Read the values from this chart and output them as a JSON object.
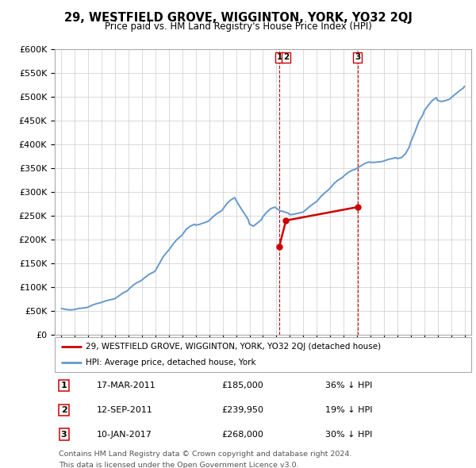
{
  "title": "29, WESTFIELD GROVE, WIGGINTON, YORK, YO32 2QJ",
  "subtitle": "Price paid vs. HM Land Registry's House Price Index (HPI)",
  "legend_line1": "29, WESTFIELD GROVE, WIGGINTON, YORK, YO32 2QJ (detached house)",
  "legend_line2": "HPI: Average price, detached house, York",
  "footer1": "Contains HM Land Registry data © Crown copyright and database right 2024.",
  "footer2": "This data is licensed under the Open Government Licence v3.0.",
  "transactions": [
    {
      "num": 1,
      "date": "17-MAR-2011",
      "price": 185000,
      "pct": "36%",
      "dir": "↓",
      "x": 2011.21
    },
    {
      "num": 2,
      "date": "12-SEP-2011",
      "price": 239950,
      "pct": "19%",
      "dir": "↓",
      "x": 2011.71
    },
    {
      "num": 3,
      "date": "10-JAN-2017",
      "price": 268000,
      "pct": "30%",
      "dir": "↓",
      "x": 2017.03
    }
  ],
  "vline_groups": [
    2011.21,
    2017.03
  ],
  "hpi_color": "#6699cc",
  "sold_color": "#cc0000",
  "vline_color": "#cc0000",
  "grid_color": "#cccccc",
  "ylim": [
    0,
    600000
  ],
  "xlim_start": 1994.5,
  "xlim_end": 2025.5,
  "ytick_values": [
    0,
    50000,
    100000,
    150000,
    200000,
    250000,
    300000,
    350000,
    400000,
    450000,
    500000,
    550000,
    600000
  ],
  "ytick_labels": [
    "£0",
    "£50K",
    "£100K",
    "£150K",
    "£200K",
    "£250K",
    "£300K",
    "£350K",
    "£400K",
    "£450K",
    "£500K",
    "£550K",
    "£600K"
  ],
  "xtick_values": [
    1995,
    1996,
    1997,
    1998,
    1999,
    2000,
    2001,
    2002,
    2003,
    2004,
    2005,
    2006,
    2007,
    2008,
    2009,
    2010,
    2011,
    2012,
    2013,
    2014,
    2015,
    2016,
    2017,
    2018,
    2019,
    2020,
    2021,
    2022,
    2023,
    2024,
    2025
  ],
  "hpi_data": [
    [
      1995.0,
      55000
    ],
    [
      1995.3,
      53000
    ],
    [
      1995.6,
      52000
    ],
    [
      1995.9,
      52500
    ],
    [
      1996.0,
      53000
    ],
    [
      1996.3,
      55000
    ],
    [
      1996.6,
      56000
    ],
    [
      1996.9,
      57000
    ],
    [
      1997.0,
      58000
    ],
    [
      1997.3,
      62000
    ],
    [
      1997.6,
      65000
    ],
    [
      1997.9,
      67000
    ],
    [
      1998.0,
      68000
    ],
    [
      1998.3,
      71000
    ],
    [
      1998.6,
      73000
    ],
    [
      1998.9,
      75000
    ],
    [
      1999.0,
      76000
    ],
    [
      1999.3,
      82000
    ],
    [
      1999.6,
      88000
    ],
    [
      1999.9,
      92000
    ],
    [
      2000.0,
      95000
    ],
    [
      2000.3,
      103000
    ],
    [
      2000.6,
      109000
    ],
    [
      2000.9,
      113000
    ],
    [
      2001.0,
      115000
    ],
    [
      2001.3,
      122000
    ],
    [
      2001.6,
      128000
    ],
    [
      2001.9,
      132000
    ],
    [
      2002.0,
      135000
    ],
    [
      2002.3,
      150000
    ],
    [
      2002.6,
      165000
    ],
    [
      2002.9,
      175000
    ],
    [
      2003.0,
      178000
    ],
    [
      2003.3,
      190000
    ],
    [
      2003.6,
      200000
    ],
    [
      2003.9,
      207000
    ],
    [
      2004.0,
      210000
    ],
    [
      2004.3,
      222000
    ],
    [
      2004.6,
      228000
    ],
    [
      2004.9,
      232000
    ],
    [
      2005.0,
      230000
    ],
    [
      2005.3,
      232000
    ],
    [
      2005.6,
      235000
    ],
    [
      2005.9,
      238000
    ],
    [
      2006.0,
      240000
    ],
    [
      2006.3,
      248000
    ],
    [
      2006.6,
      255000
    ],
    [
      2006.9,
      260000
    ],
    [
      2007.0,
      263000
    ],
    [
      2007.3,
      275000
    ],
    [
      2007.6,
      283000
    ],
    [
      2007.9,
      288000
    ],
    [
      2008.0,
      282000
    ],
    [
      2008.3,
      268000
    ],
    [
      2008.6,
      255000
    ],
    [
      2008.9,
      242000
    ],
    [
      2009.0,
      232000
    ],
    [
      2009.3,
      228000
    ],
    [
      2009.6,
      235000
    ],
    [
      2009.9,
      242000
    ],
    [
      2010.0,
      248000
    ],
    [
      2010.3,
      258000
    ],
    [
      2010.6,
      265000
    ],
    [
      2010.9,
      268000
    ],
    [
      2011.0,
      265000
    ],
    [
      2011.3,
      260000
    ],
    [
      2011.6,
      258000
    ],
    [
      2011.9,
      255000
    ],
    [
      2012.0,
      252000
    ],
    [
      2012.3,
      253000
    ],
    [
      2012.6,
      255000
    ],
    [
      2012.9,
      257000
    ],
    [
      2013.0,
      258000
    ],
    [
      2013.3,
      265000
    ],
    [
      2013.6,
      272000
    ],
    [
      2013.9,
      278000
    ],
    [
      2014.0,
      280000
    ],
    [
      2014.3,
      290000
    ],
    [
      2014.6,
      298000
    ],
    [
      2014.9,
      305000
    ],
    [
      2015.0,
      308000
    ],
    [
      2015.3,
      318000
    ],
    [
      2015.6,
      325000
    ],
    [
      2015.9,
      330000
    ],
    [
      2016.0,
      333000
    ],
    [
      2016.3,
      340000
    ],
    [
      2016.6,
      345000
    ],
    [
      2016.9,
      348000
    ],
    [
      2017.0,
      350000
    ],
    [
      2017.3,
      355000
    ],
    [
      2017.6,
      360000
    ],
    [
      2017.9,
      363000
    ],
    [
      2018.0,
      362000
    ],
    [
      2018.3,
      362000
    ],
    [
      2018.6,
      363000
    ],
    [
      2018.9,
      364000
    ],
    [
      2019.0,
      365000
    ],
    [
      2019.3,
      368000
    ],
    [
      2019.6,
      370000
    ],
    [
      2019.9,
      372000
    ],
    [
      2020.0,
      370000
    ],
    [
      2020.3,
      372000
    ],
    [
      2020.6,
      380000
    ],
    [
      2020.9,
      395000
    ],
    [
      2021.0,
      405000
    ],
    [
      2021.3,
      425000
    ],
    [
      2021.6,
      448000
    ],
    [
      2021.9,
      462000
    ],
    [
      2022.0,
      470000
    ],
    [
      2022.3,
      482000
    ],
    [
      2022.6,
      492000
    ],
    [
      2022.9,
      498000
    ],
    [
      2023.0,
      492000
    ],
    [
      2023.3,
      490000
    ],
    [
      2023.6,
      492000
    ],
    [
      2023.9,
      495000
    ],
    [
      2024.0,
      498000
    ],
    [
      2024.3,
      505000
    ],
    [
      2024.6,
      512000
    ],
    [
      2024.9,
      518000
    ],
    [
      2025.0,
      522000
    ]
  ],
  "sold_data": [
    [
      2011.21,
      185000
    ],
    [
      2011.71,
      239950
    ],
    [
      2017.03,
      268000
    ]
  ]
}
